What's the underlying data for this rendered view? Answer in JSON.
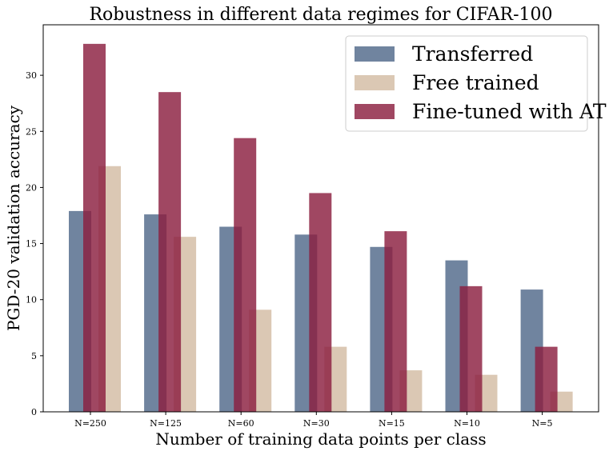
{
  "chart_data": {
    "type": "bar",
    "title": "Robustness in different data regimes for CIFAR-100",
    "xlabel": "Number of training data points per class",
    "ylabel": "PGD-20 validation accuracy",
    "ylim": [
      0,
      34.5
    ],
    "yticks": [
      0,
      5,
      10,
      15,
      20,
      25,
      30
    ],
    "categories": [
      "N=250",
      "N=125",
      "N=60",
      "N=30",
      "N=15",
      "N=10",
      "N=5"
    ],
    "series": [
      {
        "name": "Transferred",
        "color": "#50698a",
        "values": [
          17.9,
          17.6,
          16.5,
          15.8,
          14.7,
          13.5,
          10.9
        ]
      },
      {
        "name": "Free trained",
        "color": "#d3bca3",
        "values": [
          21.9,
          15.6,
          9.1,
          5.8,
          3.7,
          3.3,
          1.8
        ]
      },
      {
        "name": "Fine-tuned with AT",
        "color": "#8b1e3f",
        "values": [
          32.8,
          28.5,
          24.4,
          19.5,
          16.1,
          11.2,
          5.8
        ]
      }
    ],
    "legend_position": "top-right",
    "grid": false
  }
}
